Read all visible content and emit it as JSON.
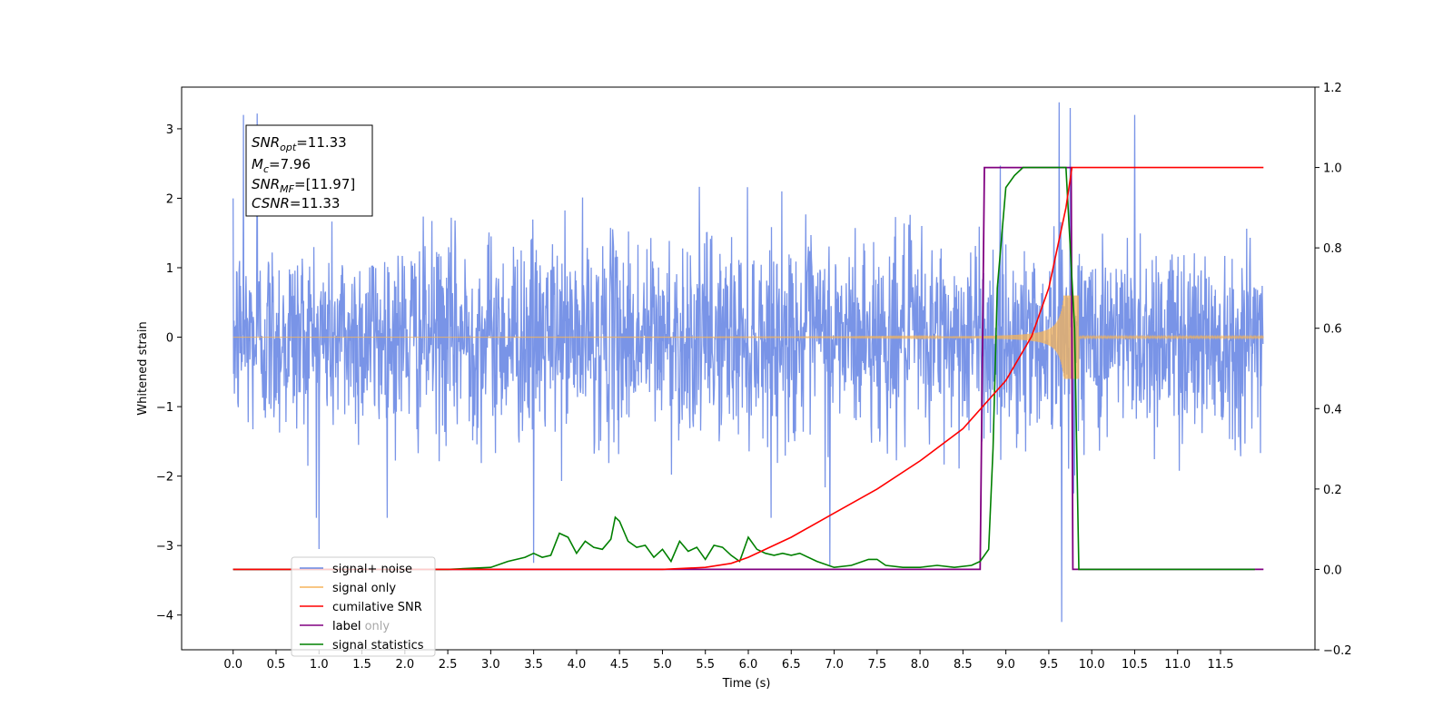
{
  "chart_data": {
    "type": "line",
    "xlabel": "Time (s)",
    "ylabel": "Whitened strain",
    "xlim": [
      -0.6,
      12.6
    ],
    "ylim": [
      -4.5,
      3.6
    ],
    "ylim_right": [
      -0.2,
      1.2
    ],
    "x_ticks": [
      "0.0",
      "0.5",
      "1.0",
      "1.5",
      "2.0",
      "2.5",
      "3.0",
      "3.5",
      "4.0",
      "4.5",
      "5.0",
      "5.5",
      "6.0",
      "6.5",
      "7.0",
      "7.5",
      "8.0",
      "8.5",
      "9.0",
      "9.5",
      "10.0",
      "10.5",
      "11.0",
      "11.5"
    ],
    "y_ticks": [
      "3",
      "2",
      "1",
      "0",
      "−1",
      "−2",
      "−3",
      "−4"
    ],
    "y_ticks_right": [
      "1.2",
      "1.0",
      "0.8",
      "0.6",
      "0.4",
      "0.2",
      "0.0",
      "−0.2"
    ],
    "grid": false,
    "legend_position": "lower-left",
    "annotation": {
      "snr_opt_main": "SNR",
      "snr_opt_sub": "opt",
      "snr_opt_value": "=11.33",
      "mc_main": "M",
      "mc_sub": "c",
      "mc_value": "=7.96",
      "snr_mf_main": "SNR",
      "snr_mf_sub": "MF",
      "snr_mf_value": "=[11.97]",
      "csnr_main": "CSNR",
      "csnr_value": "=11.33"
    },
    "series": [
      {
        "name": "signal+ noise",
        "axis": "left",
        "color": "#6a88e4",
        "sampling": "noise, approx ±1.3 std, range 0.0–12.0 s",
        "spikes": [
          [
            0.12,
            3.2
          ],
          [
            0.28,
            3.22
          ],
          [
            1.0,
            -3.05
          ],
          [
            3.5,
            -3.25
          ],
          [
            6.95,
            -3.3
          ],
          [
            9.62,
            3.38
          ],
          [
            9.65,
            -4.1
          ],
          [
            9.75,
            3.3
          ],
          [
            10.5,
            3.2
          ]
        ]
      },
      {
        "name": "signal only",
        "axis": "left",
        "color": "#f5b45a",
        "chirp": {
          "start": 0.0,
          "merger": 9.75,
          "ringdown_end": 9.85,
          "peak_amplitude": 0.6
        }
      },
      {
        "name": "cumilative SNR",
        "axis": "right",
        "color": "#ff0000",
        "x": [
          0.0,
          5.0,
          5.5,
          5.8,
          6.0,
          6.5,
          7.0,
          7.5,
          8.0,
          8.5,
          9.0,
          9.3,
          9.5,
          9.7,
          9.77,
          9.8,
          10.0,
          12.0
        ],
        "y": [
          0.0,
          0.0,
          0.005,
          0.015,
          0.03,
          0.08,
          0.14,
          0.2,
          0.27,
          0.35,
          0.47,
          0.58,
          0.7,
          0.9,
          1.0,
          1.0,
          1.0,
          1.0
        ]
      },
      {
        "name": "label",
        "axis": "right",
        "color": "#800080",
        "x": [
          0.0,
          8.7,
          8.75,
          9.76,
          9.78,
          12.0
        ],
        "y": [
          0.0,
          0.0,
          1.0,
          1.0,
          0.0,
          0.0
        ]
      },
      {
        "name": "label only",
        "axis": "right",
        "color": "#ff0000",
        "hidden": true
      },
      {
        "name": "signal statistics",
        "axis": "right",
        "color": "#008000",
        "x": [
          0.0,
          2.5,
          3.0,
          3.2,
          3.4,
          3.5,
          3.6,
          3.7,
          3.8,
          3.9,
          4.0,
          4.1,
          4.2,
          4.3,
          4.4,
          4.45,
          4.5,
          4.6,
          4.7,
          4.8,
          4.9,
          5.0,
          5.1,
          5.2,
          5.3,
          5.4,
          5.5,
          5.6,
          5.7,
          5.8,
          5.9,
          6.0,
          6.1,
          6.2,
          6.3,
          6.4,
          6.5,
          6.6,
          6.8,
          7.0,
          7.2,
          7.4,
          7.5,
          7.6,
          7.8,
          8.0,
          8.2,
          8.4,
          8.6,
          8.7,
          8.8,
          8.85,
          8.9,
          9.0,
          9.1,
          9.2,
          9.3,
          9.5,
          9.7,
          9.8,
          9.85,
          11.9
        ],
        "y": [
          0.0,
          0.0,
          0.005,
          0.02,
          0.03,
          0.04,
          0.03,
          0.035,
          0.09,
          0.08,
          0.04,
          0.07,
          0.055,
          0.05,
          0.075,
          0.13,
          0.12,
          0.07,
          0.055,
          0.06,
          0.03,
          0.05,
          0.02,
          0.07,
          0.045,
          0.055,
          0.025,
          0.06,
          0.055,
          0.035,
          0.02,
          0.08,
          0.05,
          0.04,
          0.035,
          0.04,
          0.035,
          0.04,
          0.02,
          0.005,
          0.01,
          0.025,
          0.025,
          0.01,
          0.005,
          0.005,
          0.01,
          0.005,
          0.01,
          0.02,
          0.05,
          0.3,
          0.7,
          0.95,
          0.98,
          1.0,
          1.0,
          1.0,
          1.0,
          0.6,
          0.0,
          0.0
        ]
      }
    ]
  }
}
